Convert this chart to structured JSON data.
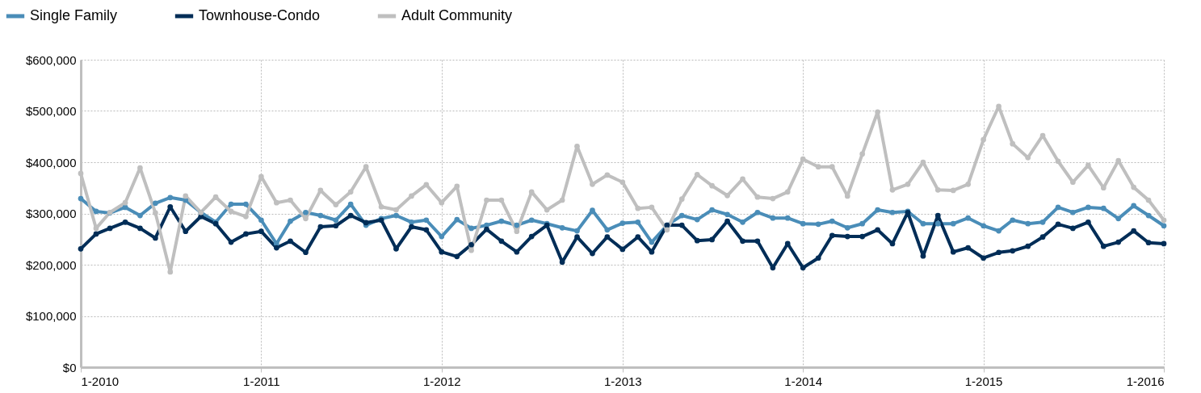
{
  "chart_data": {
    "type": "line",
    "marker": "circle",
    "line_style": "solid",
    "grid": true,
    "legend": "top left",
    "x": [
      "2010-01",
      "2010-02",
      "2010-03",
      "2010-04",
      "2010-05",
      "2010-06",
      "2010-07",
      "2010-08",
      "2010-09",
      "2010-10",
      "2010-11",
      "2010-12",
      "2011-01",
      "2011-02",
      "2011-03",
      "2011-04",
      "2011-05",
      "2011-06",
      "2011-07",
      "2011-08",
      "2011-09",
      "2011-10",
      "2011-11",
      "2011-12",
      "2012-01",
      "2012-02",
      "2012-03",
      "2012-04",
      "2012-05",
      "2012-06",
      "2012-07",
      "2012-08",
      "2012-09",
      "2012-10",
      "2012-11",
      "2012-12",
      "2013-01",
      "2013-02",
      "2013-03",
      "2013-04",
      "2013-05",
      "2013-06",
      "2013-07",
      "2013-08",
      "2013-09",
      "2013-10",
      "2013-11",
      "2013-12",
      "2014-01",
      "2014-02",
      "2014-03",
      "2014-04",
      "2014-05",
      "2014-06",
      "2014-07",
      "2014-08",
      "2014-09",
      "2014-10",
      "2014-11",
      "2014-12",
      "2015-01",
      "2015-02",
      "2015-03",
      "2015-04",
      "2015-05",
      "2015-06",
      "2015-07",
      "2015-08",
      "2015-09",
      "2015-10",
      "2015-11",
      "2015-12",
      "2016-01"
    ],
    "xlim": [
      "2010-01",
      "2016-01"
    ],
    "xticks": [
      {
        "value": "2010-01",
        "label": "1-2010"
      },
      {
        "value": "2011-01",
        "label": "1-2011"
      },
      {
        "value": "2012-01",
        "label": "1-2012"
      },
      {
        "value": "2013-01",
        "label": "1-2013"
      },
      {
        "value": "2014-01",
        "label": "1-2014"
      },
      {
        "value": "2015-01",
        "label": "1-2015"
      },
      {
        "value": "2016-01",
        "label": "1-2016"
      }
    ],
    "ylim": [
      0,
      600000
    ],
    "yticks": [
      {
        "value": 0,
        "label": "$0"
      },
      {
        "value": 100000,
        "label": "$100,000"
      },
      {
        "value": 200000,
        "label": "$200,000"
      },
      {
        "value": 300000,
        "label": "$300,000"
      },
      {
        "value": 400000,
        "label": "$400,000"
      },
      {
        "value": 500000,
        "label": "$500,000"
      },
      {
        "value": 600000,
        "label": "$600,000"
      }
    ],
    "series": [
      {
        "name": "Single Family",
        "color": "#4a8db8",
        "values": [
          329000,
          304000,
          301000,
          312000,
          296000,
          320000,
          331000,
          326000,
          302000,
          283000,
          318000,
          318000,
          287000,
          241000,
          285000,
          302000,
          296000,
          287000,
          318000,
          277000,
          290000,
          296000,
          283000,
          287000,
          255000,
          288000,
          271000,
          277000,
          285000,
          277000,
          287000,
          280000,
          272000,
          266000,
          306000,
          268000,
          281000,
          283000,
          244000,
          277000,
          296000,
          288000,
          307000,
          298000,
          283000,
          302000,
          291000,
          291000,
          280000,
          279000,
          285000,
          272000,
          280000,
          307000,
          302000,
          304000,
          280000,
          280000,
          280000,
          291000,
          276000,
          266000,
          287000,
          280000,
          283000,
          312000,
          302000,
          312000,
          310000,
          290000,
          315000,
          296000,
          276000
        ]
      },
      {
        "name": "Townhouse-Condo",
        "color": "#002d57",
        "values": [
          231000,
          260000,
          271000,
          283000,
          271000,
          252000,
          313000,
          265000,
          294000,
          280000,
          244000,
          260000,
          265000,
          233000,
          246000,
          224000,
          274000,
          276000,
          296000,
          282000,
          287000,
          231000,
          274000,
          268000,
          225000,
          216000,
          239000,
          269000,
          246000,
          225000,
          255000,
          277000,
          205000,
          254000,
          222000,
          254000,
          230000,
          254000,
          225000,
          277000,
          277000,
          247000,
          249000,
          285000,
          246000,
          246000,
          194000,
          241000,
          194000,
          213000,
          257000,
          255000,
          255000,
          268000,
          241000,
          302000,
          217000,
          296000,
          225000,
          233000,
          213000,
          224000,
          227000,
          236000,
          254000,
          279000,
          271000,
          283000,
          236000,
          244000,
          266000,
          243000,
          241000
        ]
      },
      {
        "name": "Adult Community",
        "color": "#bfbfbf",
        "values": [
          378000,
          271000,
          302000,
          321000,
          389000,
          301000,
          186000,
          334000,
          302000,
          332000,
          304000,
          294000,
          372000,
          321000,
          326000,
          290000,
          345000,
          317000,
          342000,
          391000,
          313000,
          307000,
          334000,
          356000,
          321000,
          353000,
          228000,
          326000,
          326000,
          265000,
          342000,
          307000,
          326000,
          431000,
          357000,
          375000,
          361000,
          310000,
          312000,
          268000,
          328000,
          376000,
          354000,
          335000,
          367000,
          332000,
          329000,
          342000,
          406000,
          391000,
          391000,
          334000,
          416000,
          498000,
          346000,
          357000,
          400000,
          346000,
          345000,
          357000,
          444000,
          509000,
          436000,
          409000,
          452000,
          402000,
          361000,
          394000,
          350000,
          403000,
          351000,
          326000,
          287000
        ]
      }
    ]
  }
}
